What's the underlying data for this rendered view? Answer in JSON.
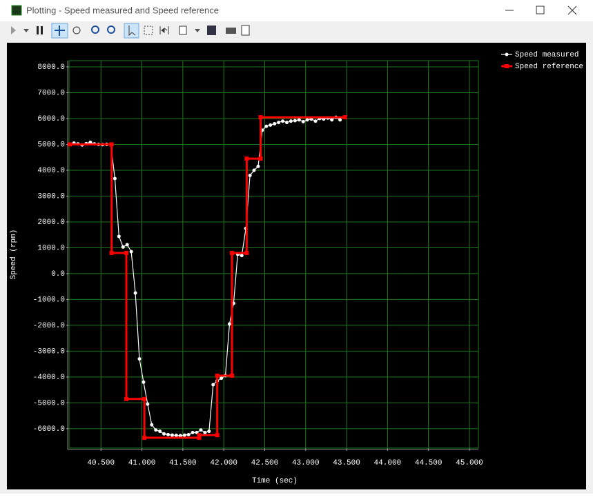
{
  "window": {
    "title": "Plotting  - Speed measured and Speed reference"
  },
  "chart_data": {
    "type": "line",
    "xlabel": "Time (sec)",
    "ylabel": "Speed (rpm)",
    "xlim": [
      40.11,
      45.11
    ],
    "ylim": [
      -6750,
      8240
    ],
    "xticks": [
      {
        "value": 40.5,
        "label": "40.500"
      },
      {
        "value": 41,
        "label": "41.000"
      },
      {
        "value": 41.5,
        "label": "41.500"
      },
      {
        "value": 42,
        "label": "42.000"
      },
      {
        "value": 42.5,
        "label": "42.500"
      },
      {
        "value": 43,
        "label": "43.000"
      },
      {
        "value": 43.5,
        "label": "43.500"
      },
      {
        "value": 44,
        "label": "44.000"
      },
      {
        "value": 44.5,
        "label": "44.500"
      },
      {
        "value": 45,
        "label": "45.000"
      }
    ],
    "yticks": [
      {
        "value": 8000,
        "label": "8000.0"
      },
      {
        "value": 7000,
        "label": "7000.0"
      },
      {
        "value": 6000,
        "label": "6000.0"
      },
      {
        "value": 5000,
        "label": "5000.0"
      },
      {
        "value": 4000,
        "label": "4000.0"
      },
      {
        "value": 3000,
        "label": "3000.0"
      },
      {
        "value": 2000,
        "label": "2000.0"
      },
      {
        "value": 1000,
        "label": "1000.0"
      },
      {
        "value": 0,
        "label": "0.0"
      },
      {
        "value": -1000,
        "label": "-1000.0"
      },
      {
        "value": -2000,
        "label": "-2000.0"
      },
      {
        "value": -3000,
        "label": "-3000.0"
      },
      {
        "value": -4000,
        "label": "-4000.0"
      },
      {
        "value": -5000,
        "label": "-5000.0"
      },
      {
        "value": -6000,
        "label": "-6000.0"
      }
    ],
    "grid": true,
    "legend": "upper right",
    "series": [
      {
        "name": "Speed measured",
        "color": "#ffffff",
        "x": [
          40.12,
          40.17,
          40.22,
          40.27,
          40.32,
          40.37,
          40.42,
          40.47,
          40.52,
          40.57,
          40.62,
          40.67,
          40.72,
          40.77,
          40.82,
          40.87,
          40.92,
          40.97,
          41.02,
          41.07,
          41.12,
          41.17,
          41.22,
          41.27,
          41.32,
          41.37,
          41.42,
          41.47,
          41.52,
          41.57,
          41.62,
          41.67,
          41.72,
          41.77,
          41.82,
          41.87,
          41.92,
          41.97,
          42.02,
          42.07,
          42.12,
          42.17,
          42.22,
          42.27,
          42.32,
          42.37,
          42.42,
          42.47,
          42.52,
          42.57,
          42.62,
          42.67,
          42.72,
          42.77,
          42.82,
          42.87,
          42.92,
          42.97,
          43.02,
          43.07,
          43.12,
          43.17,
          43.22,
          43.27,
          43.32,
          43.37,
          43.42
        ],
        "values": [
          5000,
          5050,
          5020,
          4980,
          5030,
          5080,
          5020,
          5000,
          4990,
          5000,
          5000,
          3680,
          1440,
          1030,
          1120,
          850,
          -750,
          -3300,
          -4200,
          -5050,
          -5850,
          -6050,
          -6100,
          -6200,
          -6230,
          -6250,
          -6260,
          -6270,
          -6250,
          -6230,
          -6150,
          -6150,
          -6050,
          -6150,
          -6100,
          -4300,
          -4150,
          -4050,
          -3950,
          -1950,
          -1150,
          750,
          700,
          1750,
          3800,
          4000,
          4150,
          5550,
          5700,
          5750,
          5800,
          5850,
          5900,
          5850,
          5900,
          5920,
          5950,
          5880,
          5950,
          5980,
          5900,
          6000,
          5980,
          6020,
          5950,
          6050,
          5950
        ]
      },
      {
        "name": "Speed reference",
        "color": "#ff0000",
        "x": [
          40.12,
          40.63,
          40.63,
          40.81,
          40.81,
          41.03,
          41.03,
          41.7,
          41.7,
          41.92,
          41.92,
          42.1,
          42.1,
          42.28,
          42.28,
          42.45,
          42.45,
          43.48
        ],
        "values": [
          5000,
          5000,
          800,
          800,
          -4850,
          -4850,
          -6350,
          -6350,
          -6250,
          -6250,
          -3950,
          -3950,
          800,
          800,
          4450,
          4450,
          6050,
          6050
        ]
      }
    ]
  }
}
